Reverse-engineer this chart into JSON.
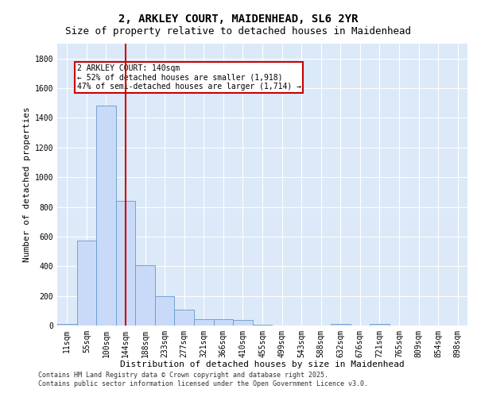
{
  "title_line1": "2, ARKLEY COURT, MAIDENHEAD, SL6 2YR",
  "title_line2": "Size of property relative to detached houses in Maidenhead",
  "xlabel": "Distribution of detached houses by size in Maidenhead",
  "ylabel": "Number of detached properties",
  "categories": [
    "11sqm",
    "55sqm",
    "100sqm",
    "144sqm",
    "188sqm",
    "233sqm",
    "277sqm",
    "321sqm",
    "366sqm",
    "410sqm",
    "455sqm",
    "499sqm",
    "543sqm",
    "588sqm",
    "632sqm",
    "676sqm",
    "721sqm",
    "765sqm",
    "809sqm",
    "854sqm",
    "898sqm"
  ],
  "values": [
    10,
    575,
    1480,
    840,
    405,
    200,
    105,
    45,
    45,
    35,
    5,
    2,
    0,
    0,
    10,
    0,
    10,
    0,
    0,
    0,
    0
  ],
  "bar_color": "#c9daf8",
  "bar_edge_color": "#6699cc",
  "vline_x_index": 3,
  "vline_color": "#cc0000",
  "annotation_text": "2 ARKLEY COURT: 140sqm\n← 52% of detached houses are smaller (1,918)\n47% of semi-detached houses are larger (1,714) →",
  "annotation_box_edge_color": "#cc0000",
  "annotation_fontsize": 7,
  "ylim": [
    0,
    1900
  ],
  "yticks": [
    0,
    200,
    400,
    600,
    800,
    1000,
    1200,
    1400,
    1600,
    1800
  ],
  "background_color": "#dce9f8",
  "grid_color": "#ffffff",
  "title_fontsize": 10,
  "subtitle_fontsize": 9,
  "axis_label_fontsize": 8,
  "tick_fontsize": 7,
  "footnote": "Contains HM Land Registry data © Crown copyright and database right 2025.\nContains public sector information licensed under the Open Government Licence v3.0."
}
